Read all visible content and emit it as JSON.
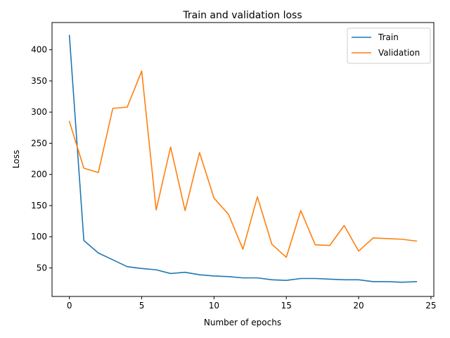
{
  "chart_data": {
    "type": "line",
    "title": "Train and validation loss",
    "xlabel": "Number of epochs",
    "ylabel": "Loss",
    "xlim": [
      -1.2,
      25.2
    ],
    "ylim": [
      4.2,
      443.7
    ],
    "xticks": [
      0,
      5,
      10,
      15,
      20,
      25
    ],
    "yticks": [
      50,
      100,
      150,
      200,
      250,
      300,
      350,
      400
    ],
    "grid": false,
    "legend_position": "top-right",
    "x": [
      0,
      1,
      2,
      3,
      4,
      5,
      6,
      7,
      8,
      9,
      10,
      11,
      12,
      13,
      14,
      15,
      16,
      17,
      18,
      19,
      20,
      21,
      22,
      23,
      24
    ],
    "series": [
      {
        "name": "Train",
        "color": "#1f77b4",
        "values": [
          423,
          94,
          74,
          63,
          52,
          49,
          47,
          41,
          43,
          39,
          37,
          36,
          34,
          34,
          31,
          30,
          33,
          33,
          32,
          31,
          31,
          28,
          28,
          27,
          28
        ]
      },
      {
        "name": "Validation",
        "color": "#ff7f0e",
        "values": [
          285,
          210,
          203,
          306,
          308,
          366,
          143,
          244,
          142,
          235,
          162,
          136,
          80,
          164,
          88,
          67,
          142,
          87,
          86,
          118,
          77,
          98,
          97,
          96,
          93
        ]
      }
    ]
  }
}
